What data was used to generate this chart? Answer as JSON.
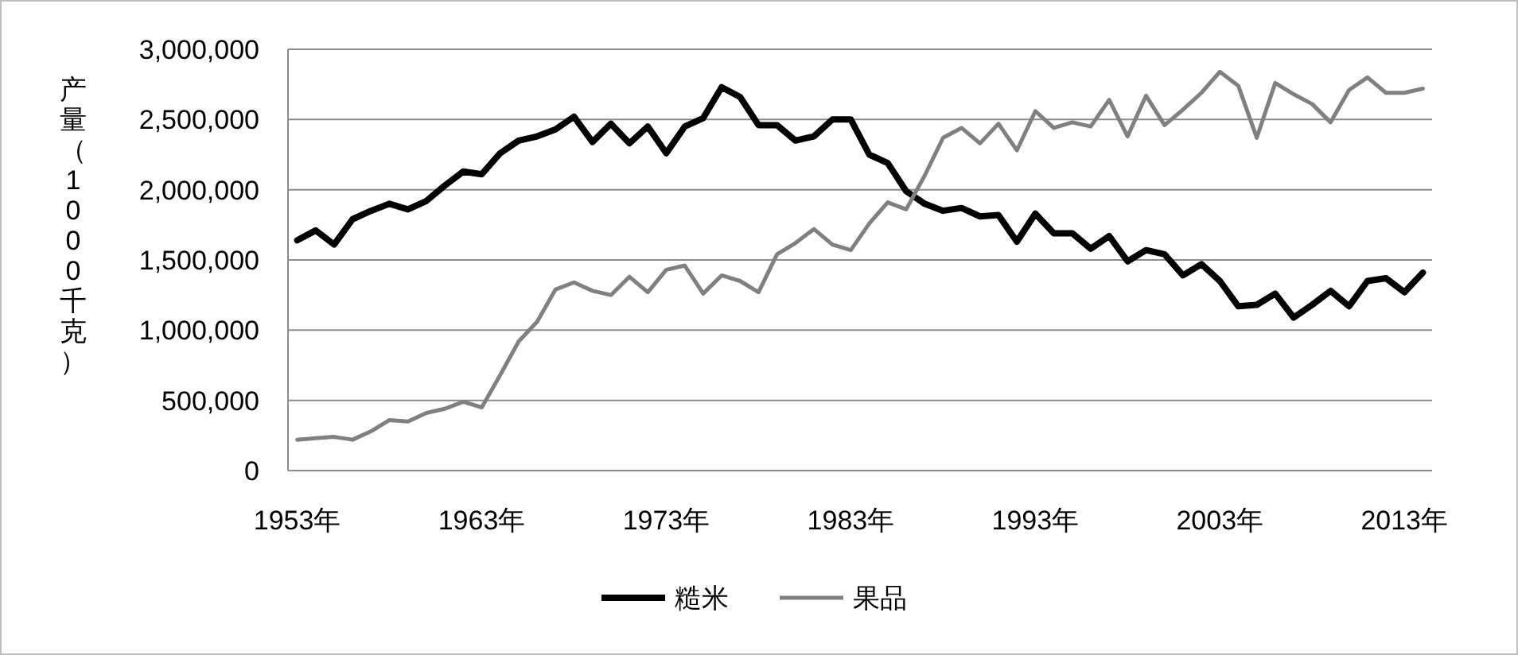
{
  "chart_data": {
    "type": "line",
    "ylabel": "产量（1000千克）",
    "categories": [
      "1953年",
      null,
      null,
      null,
      null,
      null,
      null,
      null,
      null,
      null,
      "1963年",
      null,
      null,
      null,
      null,
      null,
      null,
      null,
      null,
      null,
      "1973年",
      null,
      null,
      null,
      null,
      null,
      null,
      null,
      null,
      null,
      "1983年",
      null,
      null,
      null,
      null,
      null,
      null,
      null,
      null,
      null,
      "1993年",
      null,
      null,
      null,
      null,
      null,
      null,
      null,
      null,
      null,
      "2003年",
      null,
      null,
      null,
      null,
      null,
      null,
      null,
      null,
      null,
      "2013年",
      null
    ],
    "series": [
      {
        "name": "糙米",
        "color": "#000000",
        "values": [
          1640000,
          1710000,
          1610000,
          1790000,
          1850000,
          1900000,
          1860000,
          1920000,
          2030000,
          2130000,
          2110000,
          2260000,
          2350000,
          2380000,
          2430000,
          2520000,
          2340000,
          2470000,
          2330000,
          2450000,
          2260000,
          2450000,
          2510000,
          2730000,
          2660000,
          2460000,
          2460000,
          2350000,
          2380000,
          2500000,
          2500000,
          2250000,
          2190000,
          1990000,
          1900000,
          1850000,
          1870000,
          1810000,
          1820000,
          1630000,
          1830000,
          1690000,
          1690000,
          1580000,
          1670000,
          1490000,
          1570000,
          1540000,
          1390000,
          1470000,
          1350000,
          1170000,
          1180000,
          1260000,
          1090000,
          1180000,
          1280000,
          1170000,
          1350000,
          1370000,
          1270000,
          1410000
        ]
      },
      {
        "name": "果品",
        "color": "#808080",
        "values": [
          220000,
          230000,
          240000,
          220000,
          280000,
          360000,
          350000,
          410000,
          440000,
          490000,
          450000,
          680000,
          920000,
          1060000,
          1290000,
          1340000,
          1280000,
          1250000,
          1380000,
          1270000,
          1430000,
          1460000,
          1260000,
          1390000,
          1350000,
          1270000,
          1540000,
          1620000,
          1720000,
          1610000,
          1570000,
          1760000,
          1910000,
          1860000,
          2100000,
          2370000,
          2440000,
          2330000,
          2470000,
          2280000,
          2560000,
          2440000,
          2480000,
          2450000,
          2640000,
          2380000,
          2670000,
          2460000,
          2570000,
          2690000,
          2840000,
          2740000,
          2370000,
          2760000,
          2680000,
          2610000,
          2480000,
          2710000,
          2800000,
          2690000,
          2690000,
          2720000
        ]
      }
    ],
    "ylim": [
      0,
      3000000
    ],
    "yticks": [
      {
        "value": 0,
        "label": "0"
      },
      {
        "value": 500000,
        "label": "500,000"
      },
      {
        "value": 1000000,
        "label": "1,000,000"
      },
      {
        "value": 1500000,
        "label": "1,500,000"
      },
      {
        "value": 2000000,
        "label": "2,000,000"
      },
      {
        "value": 2500000,
        "label": "2,500,000"
      },
      {
        "value": 3000000,
        "label": "3,000,000"
      }
    ],
    "grid": "y",
    "legend": "bottom",
    "marker": "none",
    "line_style": "solid"
  }
}
